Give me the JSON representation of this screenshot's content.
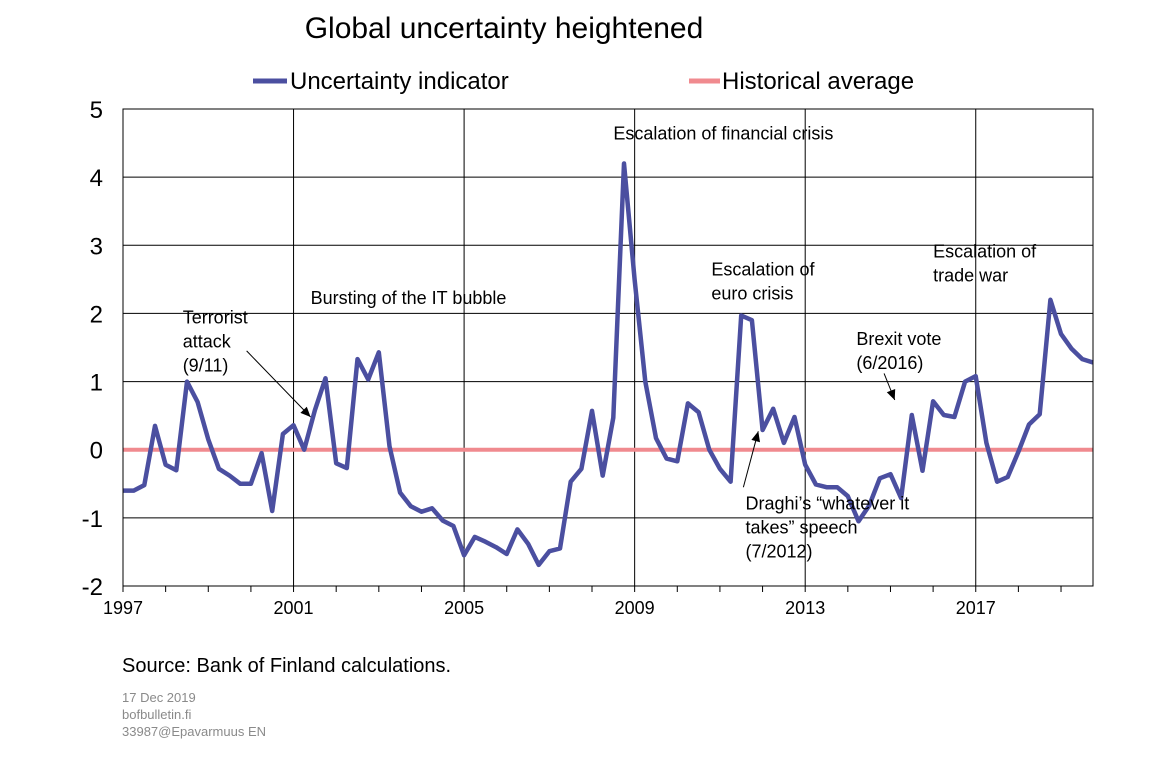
{
  "chart_data": {
    "type": "line",
    "title": "Global uncertainty heightened",
    "xlabel": "",
    "ylabel": "",
    "xlim": [
      1997.0,
      2019.75
    ],
    "ylim": [
      -2,
      5
    ],
    "yticks": [
      "5",
      "4",
      "3",
      "2",
      "1",
      "0",
      "-1",
      "-2"
    ],
    "xticks": [
      "1997",
      "2001",
      "2005",
      "2009",
      "2013",
      "2017"
    ],
    "grid": true,
    "legend_position": "top",
    "series": [
      {
        "name": "Uncertainty indicator",
        "color": "#4b4fa0",
        "x": [
          1997.0,
          1997.25,
          1997.5,
          1997.75,
          1998.0,
          1998.25,
          1998.5,
          1998.75,
          1999.0,
          1999.25,
          1999.5,
          1999.75,
          2000.0,
          2000.25,
          2000.5,
          2000.75,
          2001.0,
          2001.25,
          2001.5,
          2001.75,
          2002.0,
          2002.25,
          2002.5,
          2002.75,
          2003.0,
          2003.25,
          2003.5,
          2003.75,
          2004.0,
          2004.25,
          2004.5,
          2004.75,
          2005.0,
          2005.25,
          2005.5,
          2005.75,
          2006.0,
          2006.25,
          2006.5,
          2006.75,
          2007.0,
          2007.25,
          2007.5,
          2007.75,
          2008.0,
          2008.25,
          2008.5,
          2008.75,
          2009.0,
          2009.25,
          2009.5,
          2009.75,
          2010.0,
          2010.25,
          2010.5,
          2010.75,
          2011.0,
          2011.25,
          2011.5,
          2011.75,
          2012.0,
          2012.25,
          2012.5,
          2012.75,
          2013.0,
          2013.25,
          2013.5,
          2013.75,
          2014.0,
          2014.25,
          2014.5,
          2014.75,
          2015.0,
          2015.25,
          2015.5,
          2015.75,
          2016.0,
          2016.25,
          2016.5,
          2016.75,
          2017.0,
          2017.25,
          2017.5,
          2017.75,
          2018.0,
          2018.25,
          2018.5,
          2018.75,
          2019.0,
          2019.25,
          2019.5,
          2019.75
        ],
        "y": [
          -0.6,
          -0.6,
          -0.52,
          0.35,
          -0.22,
          -0.3,
          1.0,
          0.7,
          0.15,
          -0.28,
          -0.38,
          -0.5,
          -0.5,
          -0.05,
          -0.9,
          0.23,
          0.36,
          0.0,
          0.58,
          1.05,
          -0.2,
          -0.27,
          1.33,
          1.03,
          1.43,
          0.05,
          -0.63,
          -0.83,
          -0.91,
          -0.86,
          -1.04,
          -1.12,
          -1.55,
          -1.28,
          -1.35,
          -1.43,
          -1.53,
          -1.17,
          -1.38,
          -1.69,
          -1.49,
          -1.45,
          -0.47,
          -0.28,
          0.57,
          -0.38,
          0.47,
          4.2,
          2.5,
          1.0,
          0.17,
          -0.13,
          -0.17,
          0.68,
          0.55,
          0.0,
          -0.28,
          -0.47,
          1.97,
          1.9,
          0.29,
          0.6,
          0.1,
          0.48,
          -0.22,
          -0.51,
          -0.55,
          -0.55,
          -0.68,
          -1.05,
          -0.82,
          -0.42,
          -0.36,
          -0.71,
          0.51,
          -0.31,
          0.71,
          0.51,
          0.48,
          1.0,
          1.08,
          0.1,
          -0.47,
          -0.4,
          -0.03,
          0.37,
          0.52,
          2.2,
          1.7,
          1.48,
          1.33,
          1.28
        ]
      },
      {
        "name": "Historical average",
        "color": "#f08a8f",
        "x": [
          1997.0,
          2019.75
        ],
        "y": [
          0,
          0
        ]
      }
    ],
    "annotations": [
      {
        "lines": [
          "Escalation of financial crisis"
        ],
        "x": 2008.5,
        "y": 4.55
      },
      {
        "lines": [
          "Terrorist",
          "attack",
          "(9/11)"
        ],
        "x": 1998.4,
        "y": 1.85
      },
      {
        "lines": [
          "Bursting of the IT bubble"
        ],
        "x": 2001.4,
        "y": 2.14
      },
      {
        "lines": [
          "Escalation of",
          "euro crisis"
        ],
        "x": 2010.8,
        "y": 2.56
      },
      {
        "lines": [
          "Escalation of",
          "trade war"
        ],
        "x": 2016.0,
        "y": 2.82
      },
      {
        "lines": [
          "Brexit vote",
          "(6/2016)"
        ],
        "x": 2014.2,
        "y": 1.54
      },
      {
        "lines": [
          "Draghi’s “whatever it",
          "takes” speech",
          "(7/2012)"
        ],
        "x": 2011.6,
        "y": -0.88
      }
    ],
    "arrows": [
      {
        "from": [
          1999.9,
          1.45
        ],
        "to": [
          2001.4,
          0.48
        ]
      },
      {
        "from": [
          2014.85,
          1.12
        ],
        "to": [
          2015.1,
          0.73
        ]
      },
      {
        "from": [
          2011.55,
          -0.55
        ],
        "to": [
          2011.9,
          0.27
        ]
      }
    ]
  },
  "source": "Source:  Bank  of Finland  calculations.",
  "meta": {
    "date": "17 Dec  2019",
    "site": "bofbulletin.fi",
    "code": "33987@Epavarmuus  EN"
  }
}
